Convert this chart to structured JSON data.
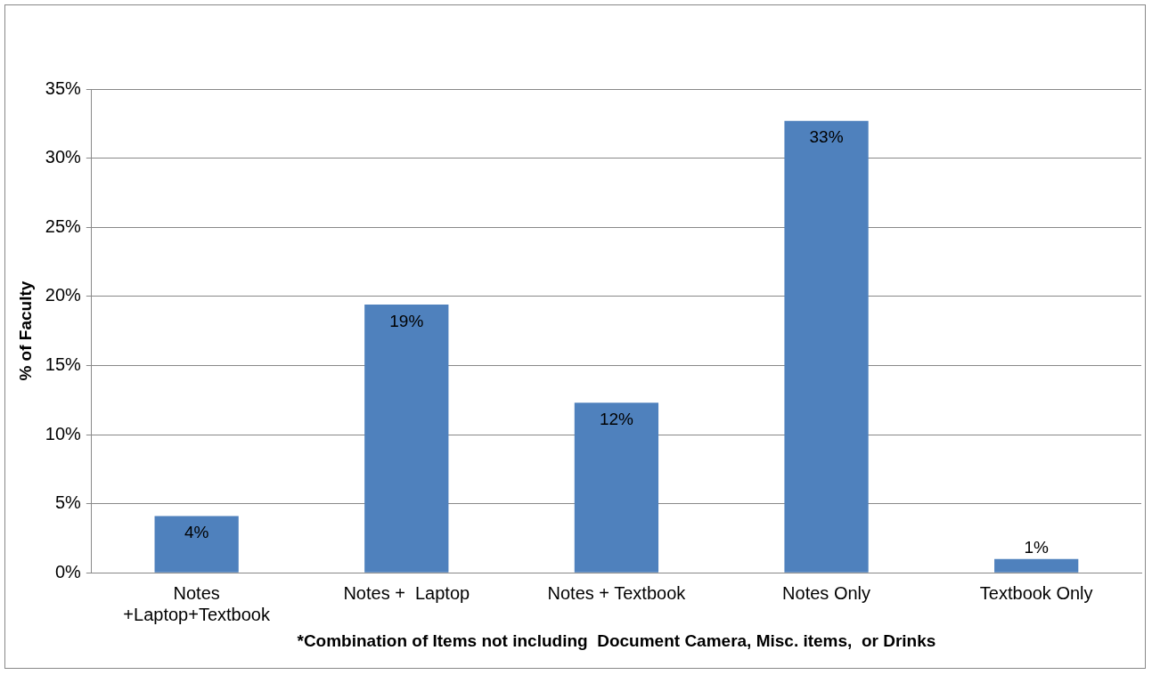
{
  "chart_data": {
    "type": "bar",
    "xlabel": "*Combination of Items not including  Document Camera, Misc. items,  or Drinks",
    "ylabel": "% of Faculty",
    "categories": [
      "Notes\n+Laptop+Textbook",
      "Notes +  Laptop",
      "Notes + Textbook",
      "Notes Only",
      "Textbook Only"
    ],
    "values": [
      4.1,
      19.4,
      12.3,
      32.7,
      1.0
    ],
    "value_labels": [
      "4%",
      "19%",
      "12%",
      "33%",
      "1%"
    ],
    "color": "#4f81bd",
    "ylim": [
      0,
      35
    ],
    "yticks": [
      {
        "value": 0,
        "label": "0%"
      },
      {
        "value": 5,
        "label": "5%"
      },
      {
        "value": 10,
        "label": "10%"
      },
      {
        "value": 15,
        "label": "15%"
      },
      {
        "value": 20,
        "label": "20%"
      },
      {
        "value": 25,
        "label": "25%"
      },
      {
        "value": 30,
        "label": "30%"
      },
      {
        "value": 35,
        "label": "35%"
      }
    ],
    "grid": "y",
    "legend": false
  }
}
